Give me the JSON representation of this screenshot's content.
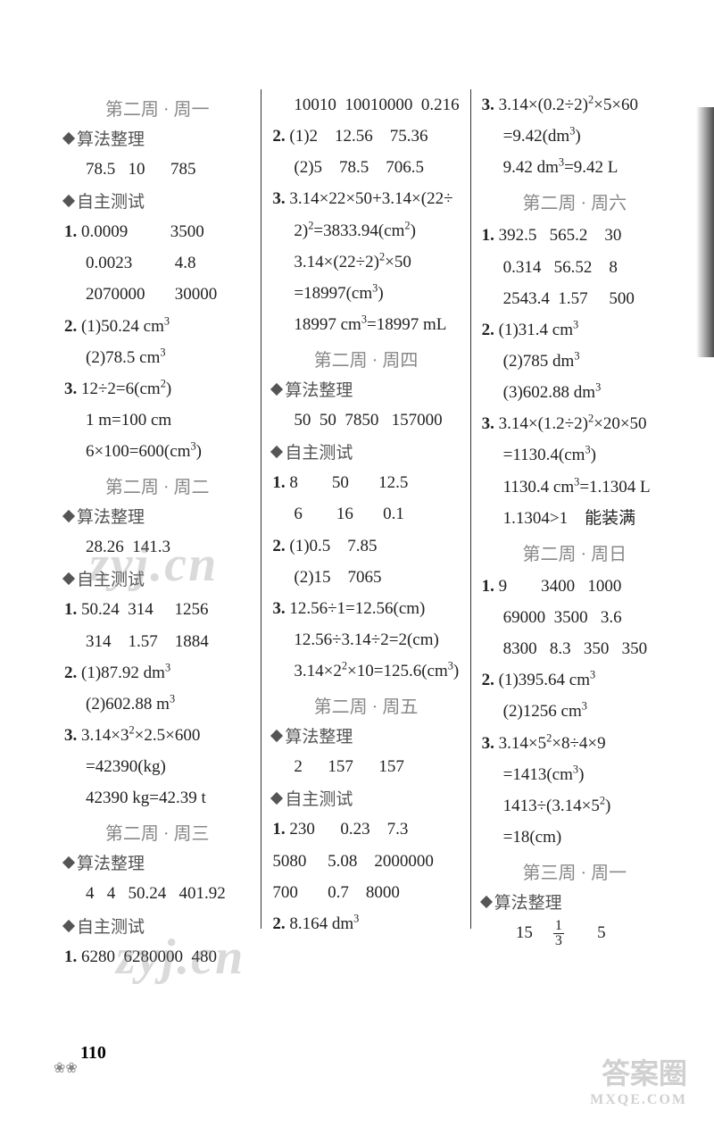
{
  "columns": [
    {
      "blocks": [
        {
          "type": "header",
          "text": "第二周 · 周一"
        },
        {
          "type": "sub",
          "text": "算法整理"
        },
        {
          "type": "line",
          "indent": true,
          "text": "78.5   10      785"
        },
        {
          "type": "sub",
          "text": "自主测试"
        },
        {
          "type": "line",
          "text": "1. 0.0009          3500",
          "bold": true
        },
        {
          "type": "line",
          "indent": true,
          "text": "0.0023          4.8"
        },
        {
          "type": "line",
          "indent": true,
          "text": "2070000       30000"
        },
        {
          "type": "line",
          "text": "2. (1)50.24 cm³",
          "bold": true
        },
        {
          "type": "line",
          "indent": true,
          "text": "(2)78.5 cm³"
        },
        {
          "type": "line",
          "text": "3. 12÷2=6(cm²)",
          "bold": true
        },
        {
          "type": "line",
          "indent": true,
          "text": "1 m=100 cm"
        },
        {
          "type": "line",
          "indent": true,
          "text": "6×100=600(cm³)"
        },
        {
          "type": "header",
          "text": "第二周 · 周二"
        },
        {
          "type": "sub",
          "text": "算法整理"
        },
        {
          "type": "line",
          "indent": true,
          "text": "28.26  141.3"
        },
        {
          "type": "sub",
          "text": "自主测试"
        },
        {
          "type": "line",
          "text": "1. 50.24  314     1256",
          "bold": true
        },
        {
          "type": "line",
          "indent": true,
          "text": "314    1.57    1884"
        },
        {
          "type": "line",
          "text": "2. (1)87.92 dm³",
          "bold": true
        },
        {
          "type": "line",
          "indent": true,
          "text": "(2)602.88 m³"
        },
        {
          "type": "line",
          "text": "3. 3.14×3²×2.5×600",
          "bold": true
        },
        {
          "type": "line",
          "indent": true,
          "text": "=42390(kg)"
        },
        {
          "type": "line",
          "indent": true,
          "text": "42390 kg=42.39 t"
        },
        {
          "type": "header",
          "text": "第二周 · 周三"
        },
        {
          "type": "sub",
          "text": "算法整理"
        },
        {
          "type": "line",
          "indent": true,
          "text": "4   4   50.24   401.92"
        },
        {
          "type": "sub",
          "text": "自主测试"
        },
        {
          "type": "line",
          "text": "1. 6280  6280000  480",
          "bold": true
        }
      ]
    },
    {
      "blocks": [
        {
          "type": "line",
          "indent": true,
          "text": "10010  10010000  0.216"
        },
        {
          "type": "line",
          "text": "2. (1)2    12.56    75.36",
          "bold": true
        },
        {
          "type": "line",
          "indent": true,
          "text": "(2)5    78.5    706.5"
        },
        {
          "type": "line",
          "text": "3. 3.14×22×50+3.14×(22÷",
          "bold": true
        },
        {
          "type": "line",
          "indent": true,
          "text": "2)²=3833.94(cm²)"
        },
        {
          "type": "line",
          "indent": true,
          "text": "3.14×(22÷2)²×50"
        },
        {
          "type": "line",
          "indent": true,
          "text": "=18997(cm³)"
        },
        {
          "type": "line",
          "indent": true,
          "text": "18997 cm³=18997 mL"
        },
        {
          "type": "header",
          "text": "第二周 · 周四"
        },
        {
          "type": "sub",
          "text": "算法整理"
        },
        {
          "type": "line",
          "indent": true,
          "text": "50  50  7850   157000"
        },
        {
          "type": "sub",
          "text": "自主测试"
        },
        {
          "type": "line",
          "text": "1. 8        50       12.5",
          "bold": true
        },
        {
          "type": "line",
          "indent": true,
          "text": "6        16       0.1"
        },
        {
          "type": "line",
          "text": "2. (1)0.5    7.85",
          "bold": true
        },
        {
          "type": "line",
          "indent": true,
          "text": "(2)15    7065"
        },
        {
          "type": "line",
          "text": "3. 12.56÷1=12.56(cm)",
          "bold": true
        },
        {
          "type": "line",
          "indent": true,
          "text": "12.56÷3.14÷2=2(cm)"
        },
        {
          "type": "line",
          "indent": true,
          "text": "3.14×2²×10=125.6(cm³)"
        },
        {
          "type": "header",
          "text": "第二周 · 周五"
        },
        {
          "type": "sub",
          "text": "算法整理"
        },
        {
          "type": "line",
          "indent": true,
          "text": "2      157      157"
        },
        {
          "type": "sub",
          "text": "自主测试"
        },
        {
          "type": "line",
          "text": "1. 230      0.23    7.3",
          "bold": true
        },
        {
          "type": "line",
          "text": "5080     5.08    2000000"
        },
        {
          "type": "line",
          "text": "700       0.7    8000"
        },
        {
          "type": "line",
          "text": "2. 8.164 dm³",
          "bold": true
        }
      ]
    },
    {
      "blocks": [
        {
          "type": "line",
          "text": "3. 3.14×(0.2÷2)²×5×60",
          "bold": true
        },
        {
          "type": "line",
          "indent": true,
          "text": "=9.42(dm³)"
        },
        {
          "type": "line",
          "indent": true,
          "text": "9.42 dm³=9.42 L"
        },
        {
          "type": "header",
          "text": "第二周 · 周六"
        },
        {
          "type": "line",
          "text": "1. 392.5   565.2    30",
          "bold": true
        },
        {
          "type": "line",
          "indent": true,
          "text": "0.314   56.52    8"
        },
        {
          "type": "line",
          "indent": true,
          "text": "2543.4  1.57     500"
        },
        {
          "type": "line",
          "text": "2. (1)31.4 cm³",
          "bold": true
        },
        {
          "type": "line",
          "indent": true,
          "text": "(2)785 dm³"
        },
        {
          "type": "line",
          "indent": true,
          "text": "(3)602.88 dm³"
        },
        {
          "type": "line",
          "text": "3. 3.14×(1.2÷2)²×20×50",
          "bold": true
        },
        {
          "type": "line",
          "indent": true,
          "text": "=1130.4(cm³)"
        },
        {
          "type": "line",
          "indent": true,
          "text": "1130.4 cm³=1.1304 L"
        },
        {
          "type": "line",
          "indent": true,
          "text": "1.1304>1    能装满"
        },
        {
          "type": "header",
          "text": "第二周 · 周日"
        },
        {
          "type": "line",
          "text": "1. 9        3400   1000",
          "bold": true
        },
        {
          "type": "line",
          "indent": true,
          "text": "69000  3500   3.6"
        },
        {
          "type": "line",
          "indent": true,
          "text": "8300   8.3   350   350"
        },
        {
          "type": "line",
          "text": "2. (1)395.64 cm³",
          "bold": true
        },
        {
          "type": "line",
          "indent": true,
          "text": "(2)1256 cm³"
        },
        {
          "type": "line",
          "text": "3. 3.14×5²×8÷4×9",
          "bold": true
        },
        {
          "type": "line",
          "indent": true,
          "text": "=1413(cm³)"
        },
        {
          "type": "line",
          "indent": true,
          "text": "1413÷(3.14×5²)"
        },
        {
          "type": "line",
          "indent": true,
          "text": "=18(cm)"
        },
        {
          "type": "header",
          "text": "第三周 · 周一"
        },
        {
          "type": "sub",
          "text": "算法整理"
        },
        {
          "type": "frac-line",
          "pre": "   15    ",
          "num": "1",
          "den": "3",
          "post": "       5"
        }
      ]
    }
  ],
  "pageNumber": "110",
  "watermark": "zyj.cn",
  "cornerBrand": "答案圈",
  "cornerUrl": "MXQE.COM"
}
